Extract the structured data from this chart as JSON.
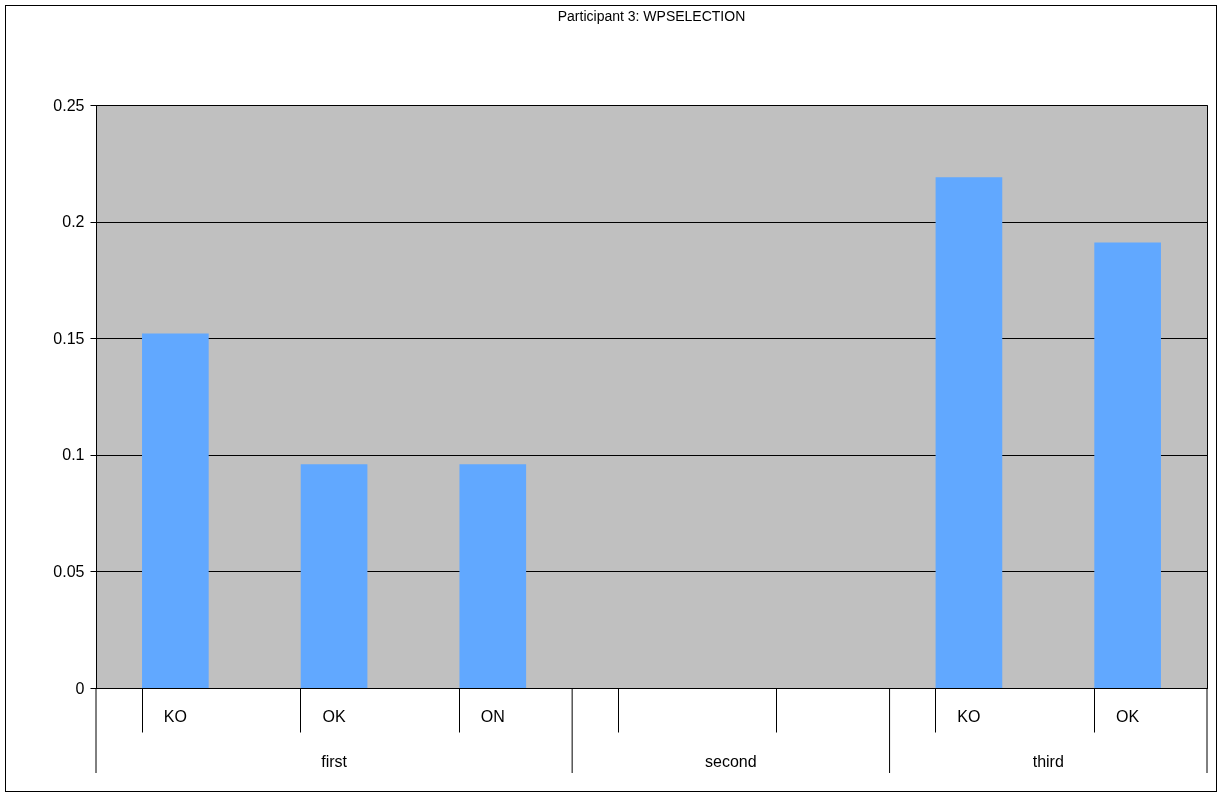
{
  "chart_data": {
    "type": "bar",
    "title": "Participant 3: WPSELECTION",
    "categories": [
      "KO",
      "OK",
      "ON",
      null,
      null,
      "KO",
      "OK"
    ],
    "values": [
      0.152,
      0.096,
      0.096,
      null,
      null,
      0.219,
      0.191
    ],
    "color": "#61a8ff",
    "ylim": [
      0,
      0.25
    ],
    "yticks": [
      0,
      0.05,
      0.1,
      0.15,
      0.2,
      0.25
    ],
    "grid": "y",
    "annotations": [
      "first",
      "second",
      "third"
    ]
  }
}
